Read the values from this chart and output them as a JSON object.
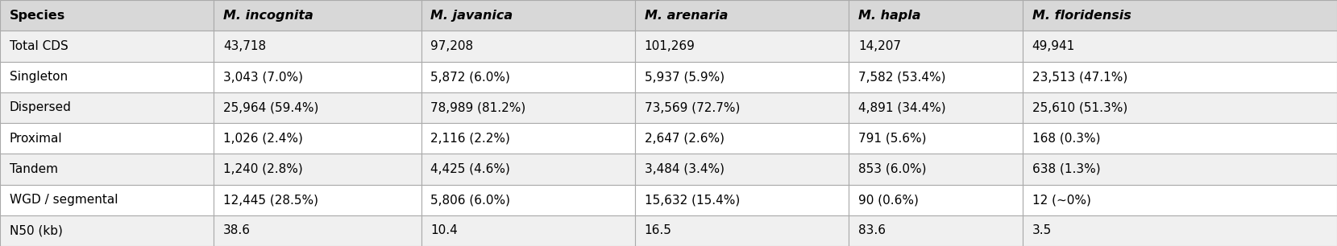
{
  "columns": [
    "Species",
    "M. incognita",
    "M. javanica",
    "M. arenaria",
    "M. hapla",
    "M. floridensis"
  ],
  "rows": [
    [
      "Total CDS",
      "43,718",
      "97,208",
      "101,269",
      "14,207",
      "49,941"
    ],
    [
      "Singleton",
      "3,043 (7.0%)",
      "5,872 (6.0%)",
      "5,937 (5.9%)",
      "7,582 (53.4%)",
      "23,513 (47.1%)"
    ],
    [
      "Dispersed",
      "25,964 (59.4%)",
      "78,989 (81.2%)",
      "73,569 (72.7%)",
      "4,891 (34.4%)",
      "25,610 (51.3%)"
    ],
    [
      "Proximal",
      "1,026 (2.4%)",
      "2,116 (2.2%)",
      "2,647 (2.6%)",
      "791 (5.6%)",
      "168 (0.3%)"
    ],
    [
      "Tandem",
      "1,240 (2.8%)",
      "4,425 (4.6%)",
      "3,484 (3.4%)",
      "853 (6.0%)",
      "638 (1.3%)"
    ],
    [
      "WGD / segmental",
      "12,445 (28.5%)",
      "5,806 (6.0%)",
      "15,632 (15.4%)",
      "90 (0.6%)",
      "12 (~0%)"
    ],
    [
      "N50 (kb)",
      "38.6",
      "10.4",
      "16.5",
      "83.6",
      "3.5"
    ]
  ],
  "header_italic_cols": [
    1,
    2,
    3,
    4,
    5
  ],
  "col_starts": [
    0.0,
    0.16,
    0.315,
    0.475,
    0.635,
    0.765
  ],
  "col_ends": [
    0.16,
    0.315,
    0.475,
    0.635,
    0.765,
    1.0
  ],
  "bg_color": "#ffffff",
  "header_bg": "#d8d8d8",
  "row_bg_even": "#f0f0f0",
  "row_bg_odd": "#ffffff",
  "border_color": "#aaaaaa",
  "text_color": "#000000",
  "font_size": 11.0,
  "header_font_size": 11.5,
  "text_padding": 0.007
}
